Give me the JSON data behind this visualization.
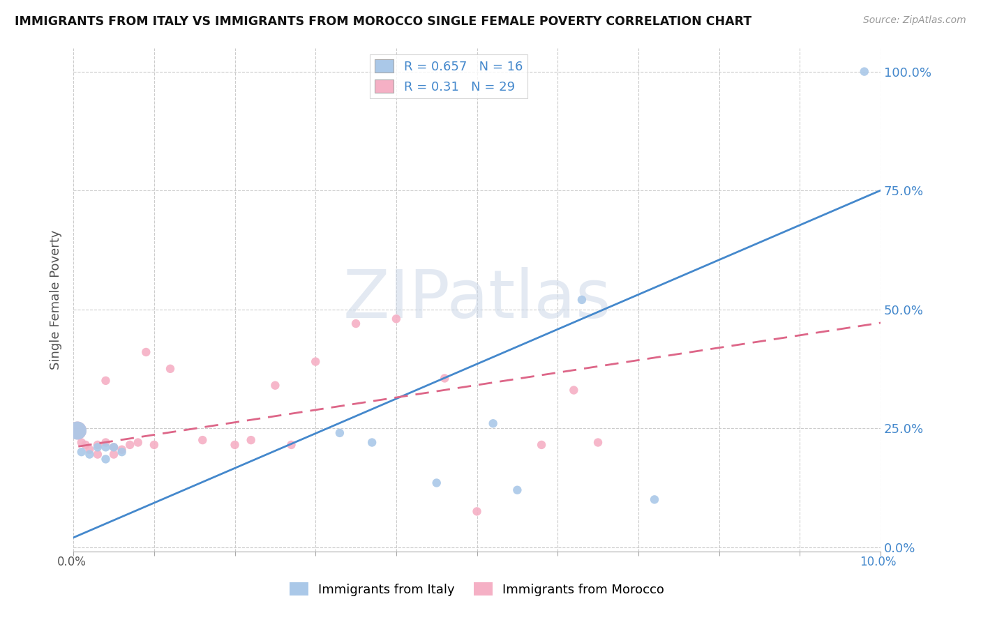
{
  "title": "IMMIGRANTS FROM ITALY VS IMMIGRANTS FROM MOROCCO SINGLE FEMALE POVERTY CORRELATION CHART",
  "source": "Source: ZipAtlas.com",
  "ylabel": "Single Female Poverty",
  "yticks_labels": [
    "0.0%",
    "25.0%",
    "50.0%",
    "75.0%",
    "100.0%"
  ],
  "ytick_vals": [
    0.0,
    0.25,
    0.5,
    0.75,
    1.0
  ],
  "xlim": [
    0.0,
    0.1
  ],
  "ylim": [
    -0.01,
    1.05
  ],
  "italy_x": [
    0.0005,
    0.001,
    0.002,
    0.003,
    0.004,
    0.004,
    0.005,
    0.006,
    0.033,
    0.037,
    0.045,
    0.052,
    0.055,
    0.063,
    0.072,
    0.098
  ],
  "italy_y": [
    0.245,
    0.2,
    0.195,
    0.21,
    0.185,
    0.21,
    0.21,
    0.2,
    0.24,
    0.22,
    0.135,
    0.26,
    0.12,
    0.52,
    0.1,
    1.0
  ],
  "italy_sizes": [
    350,
    80,
    80,
    80,
    80,
    80,
    80,
    80,
    80,
    80,
    80,
    80,
    80,
    80,
    80,
    80
  ],
  "morocco_x": [
    0.0005,
    0.001,
    0.0015,
    0.002,
    0.003,
    0.003,
    0.004,
    0.004,
    0.005,
    0.005,
    0.006,
    0.007,
    0.008,
    0.009,
    0.01,
    0.012,
    0.016,
    0.02,
    0.022,
    0.025,
    0.027,
    0.03,
    0.035,
    0.04,
    0.046,
    0.05,
    0.058,
    0.062,
    0.065
  ],
  "morocco_y": [
    0.245,
    0.22,
    0.215,
    0.205,
    0.215,
    0.195,
    0.22,
    0.35,
    0.21,
    0.195,
    0.205,
    0.215,
    0.22,
    0.41,
    0.215,
    0.375,
    0.225,
    0.215,
    0.225,
    0.34,
    0.215,
    0.39,
    0.47,
    0.48,
    0.355,
    0.075,
    0.215,
    0.33,
    0.22
  ],
  "morocco_sizes": [
    350,
    80,
    80,
    80,
    80,
    80,
    80,
    80,
    80,
    80,
    80,
    80,
    80,
    80,
    80,
    80,
    80,
    80,
    80,
    80,
    80,
    80,
    80,
    80,
    80,
    80,
    80,
    80,
    80
  ],
  "italy_color": "#aac8e8",
  "morocco_color": "#f5b0c5",
  "italy_line_color": "#4488cc",
  "morocco_line_color": "#dd6688",
  "label_color": "#4488cc",
  "italy_R": 0.657,
  "italy_N": 16,
  "morocco_R": 0.31,
  "morocco_N": 29,
  "legend_italy_label": "Immigrants from Italy",
  "legend_morocco_label": "Immigrants from Morocco",
  "background_color": "#ffffff",
  "grid_color": "#cccccc",
  "watermark": "ZIPatlas"
}
